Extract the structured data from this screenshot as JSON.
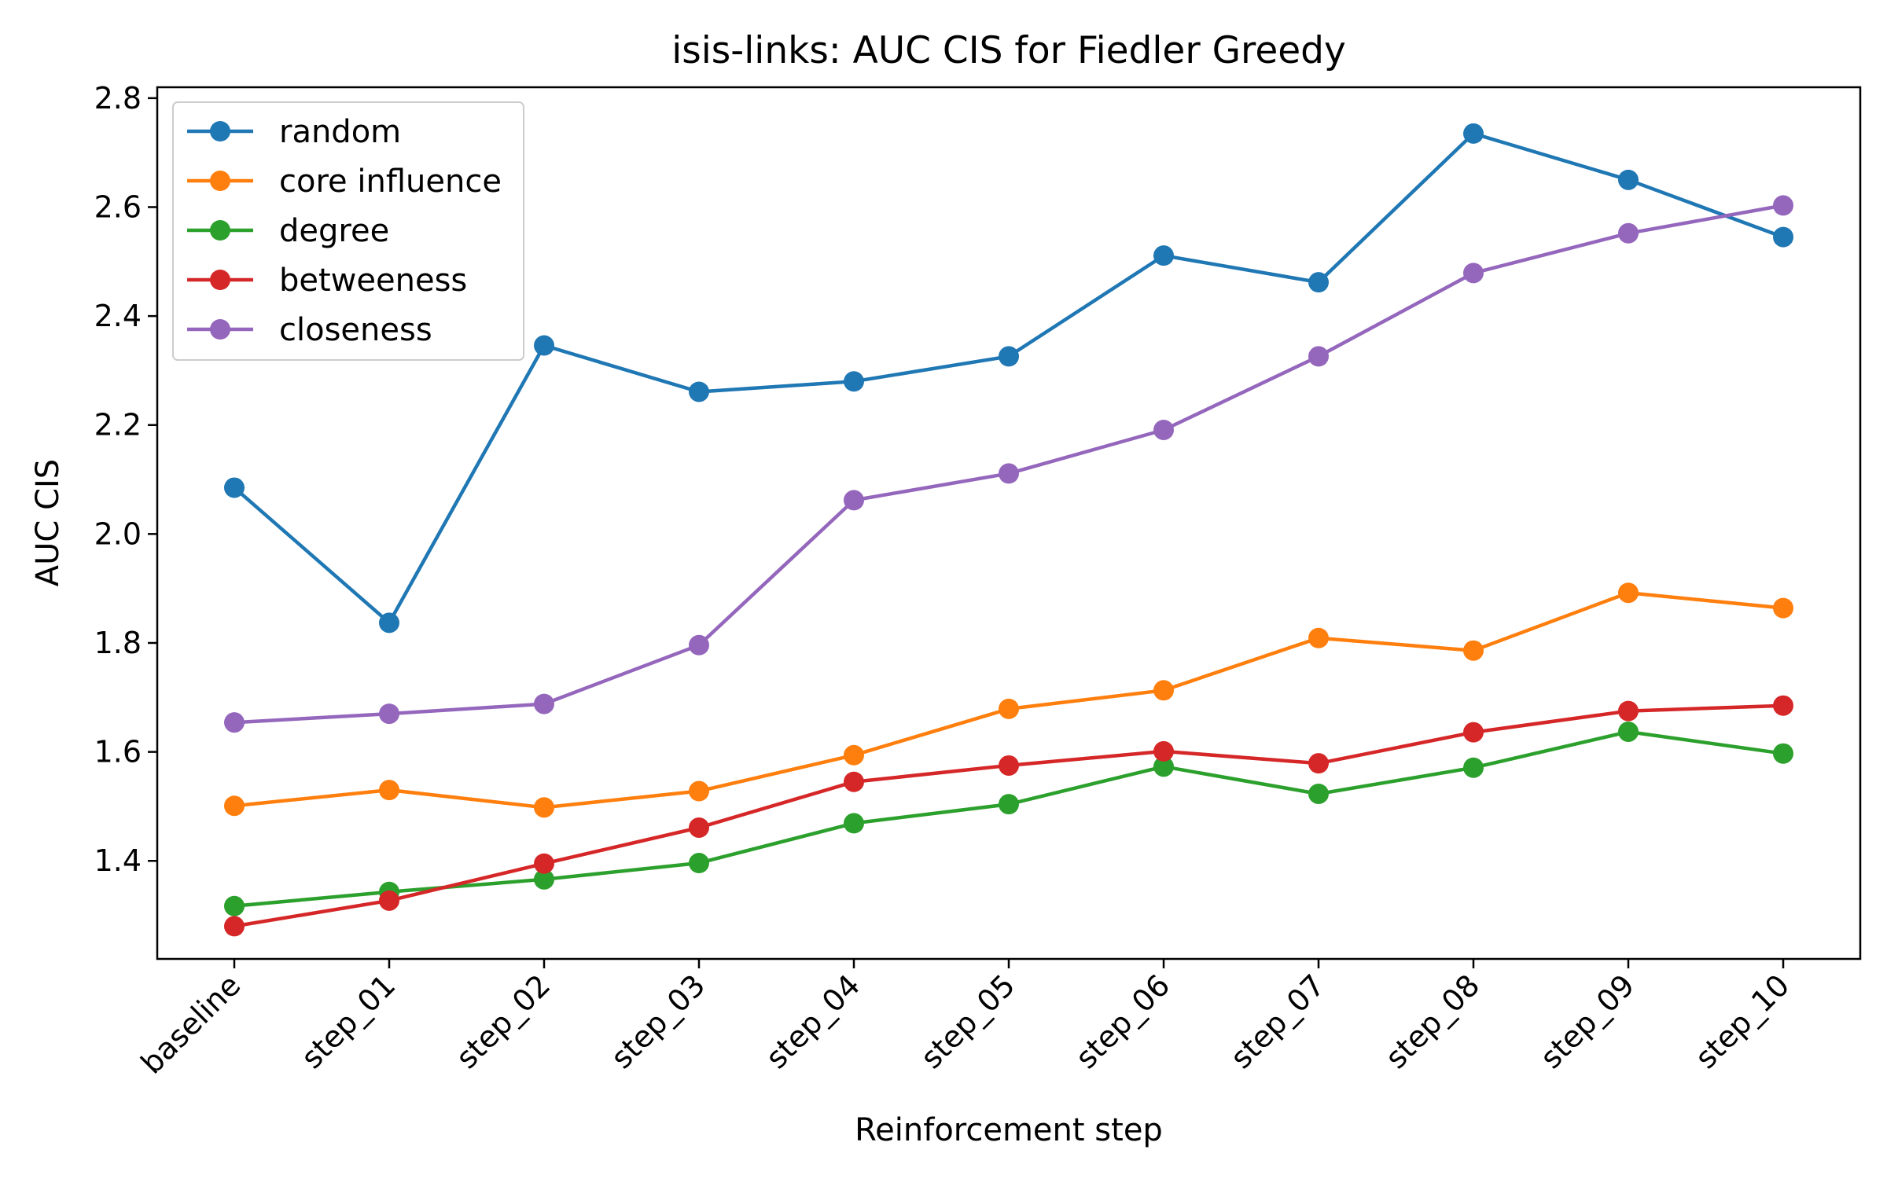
{
  "chart_data": {
    "type": "line",
    "title": "isis-links: AUC CIS for Fiedler Greedy",
    "xlabel": "Reinforcement step",
    "ylabel": "AUC CIS",
    "categories": [
      "baseline",
      "step_01",
      "step_02",
      "step_03",
      "step_04",
      "step_05",
      "step_06",
      "step_07",
      "step_08",
      "step_09",
      "step_10"
    ],
    "ylim": [
      1.22,
      2.82
    ],
    "yticks": [
      1.4,
      1.6,
      1.8,
      2.0,
      2.2,
      2.4,
      2.6,
      2.8
    ],
    "ytick_labels": [
      "1.4",
      "1.6",
      "1.8",
      "2.0",
      "2.2",
      "2.4",
      "2.6",
      "2.8"
    ],
    "grid": false,
    "legend_position": "top-left",
    "series": [
      {
        "name": "random",
        "color": "#1f77b4",
        "values": [
          2.085,
          1.837,
          2.346,
          2.261,
          2.28,
          2.326,
          2.511,
          2.462,
          2.735,
          2.65,
          2.545
        ]
      },
      {
        "name": "core influence",
        "color": "#ff7f0e",
        "values": [
          1.501,
          1.53,
          1.498,
          1.528,
          1.594,
          1.679,
          1.713,
          1.809,
          1.786,
          1.892,
          1.864
        ]
      },
      {
        "name": "degree",
        "color": "#2ca02c",
        "values": [
          1.317,
          1.343,
          1.366,
          1.396,
          1.469,
          1.504,
          1.573,
          1.523,
          1.571,
          1.637,
          1.597
        ]
      },
      {
        "name": "betweeness",
        "color": "#d62728",
        "values": [
          1.28,
          1.327,
          1.395,
          1.461,
          1.545,
          1.575,
          1.601,
          1.579,
          1.636,
          1.675,
          1.685
        ]
      },
      {
        "name": "closeness",
        "color": "#9467bd",
        "values": [
          1.654,
          1.67,
          1.688,
          1.796,
          2.062,
          2.111,
          2.191,
          2.326,
          2.479,
          2.552,
          2.603
        ]
      }
    ]
  }
}
